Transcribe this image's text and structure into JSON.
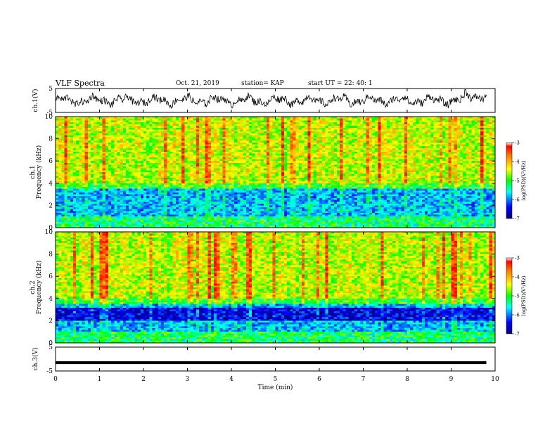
{
  "header": {
    "title": "VLF Spectra",
    "date": "Oct. 21, 2019",
    "station": "station= KAP",
    "start": "start  UT =  22: 40: 1"
  },
  "chart_data": [
    {
      "id": "ch1_waveform",
      "type": "line",
      "ylabel": "ch.1(V)",
      "ylim": [
        -5,
        5
      ],
      "y_ticks": [
        "5",
        "-5"
      ],
      "xlim": [
        0,
        10
      ],
      "series": [
        {
          "note": "noisy waveform oscillating roughly between -4 and 4 V",
          "values": []
        }
      ]
    },
    {
      "id": "ch1_spectrogram",
      "type": "heatmap",
      "ylabel": "ch.1\nFrequency (kHz)",
      "ylabel_lines": [
        "ch.1",
        "Frequency (kHz)"
      ],
      "ylim": [
        0,
        10
      ],
      "y_ticks": [
        "0",
        "2",
        "4",
        "6",
        "8",
        "10"
      ],
      "xlim": [
        0,
        10
      ],
      "colorbar": {
        "label": "log(PSD)(V²/Hz)",
        "range": [
          -7,
          -3
        ],
        "ticks": [
          "-3",
          "-4",
          "-5",
          "-6",
          "-7"
        ]
      }
    },
    {
      "id": "ch2_spectrogram",
      "type": "heatmap",
      "ylabel_lines": [
        "ch.2",
        "Frequency (kHz)"
      ],
      "ylim": [
        0,
        10
      ],
      "y_ticks": [
        "0",
        "2",
        "4",
        "6",
        "8",
        "10"
      ],
      "xlim": [
        0,
        10
      ],
      "colorbar": {
        "label": "log(PSD)(V²/Hz)",
        "range": [
          -7,
          -3
        ],
        "ticks": [
          "-3",
          "-4",
          "-5",
          "-6",
          "-7"
        ]
      }
    },
    {
      "id": "ch3_waveform",
      "type": "line",
      "ylabel": "ch.3(V)",
      "ylim": [
        -5,
        5
      ],
      "y_ticks": [
        "5",
        "-5"
      ],
      "xlim": [
        0,
        10
      ],
      "series": [
        {
          "note": "flat line near -1.5 V",
          "values": [
            -1.5,
            -1.5
          ]
        }
      ]
    }
  ],
  "x_axis": {
    "label": "Time (min)",
    "ticks": [
      "0",
      "1",
      "2",
      "3",
      "4",
      "5",
      "6",
      "7",
      "8",
      "9",
      "10"
    ]
  },
  "colors": {
    "jet": [
      "#00007f",
      "#0000ff",
      "#00ffff",
      "#00ff00",
      "#ffff00",
      "#ff7f00",
      "#ff0000"
    ]
  }
}
